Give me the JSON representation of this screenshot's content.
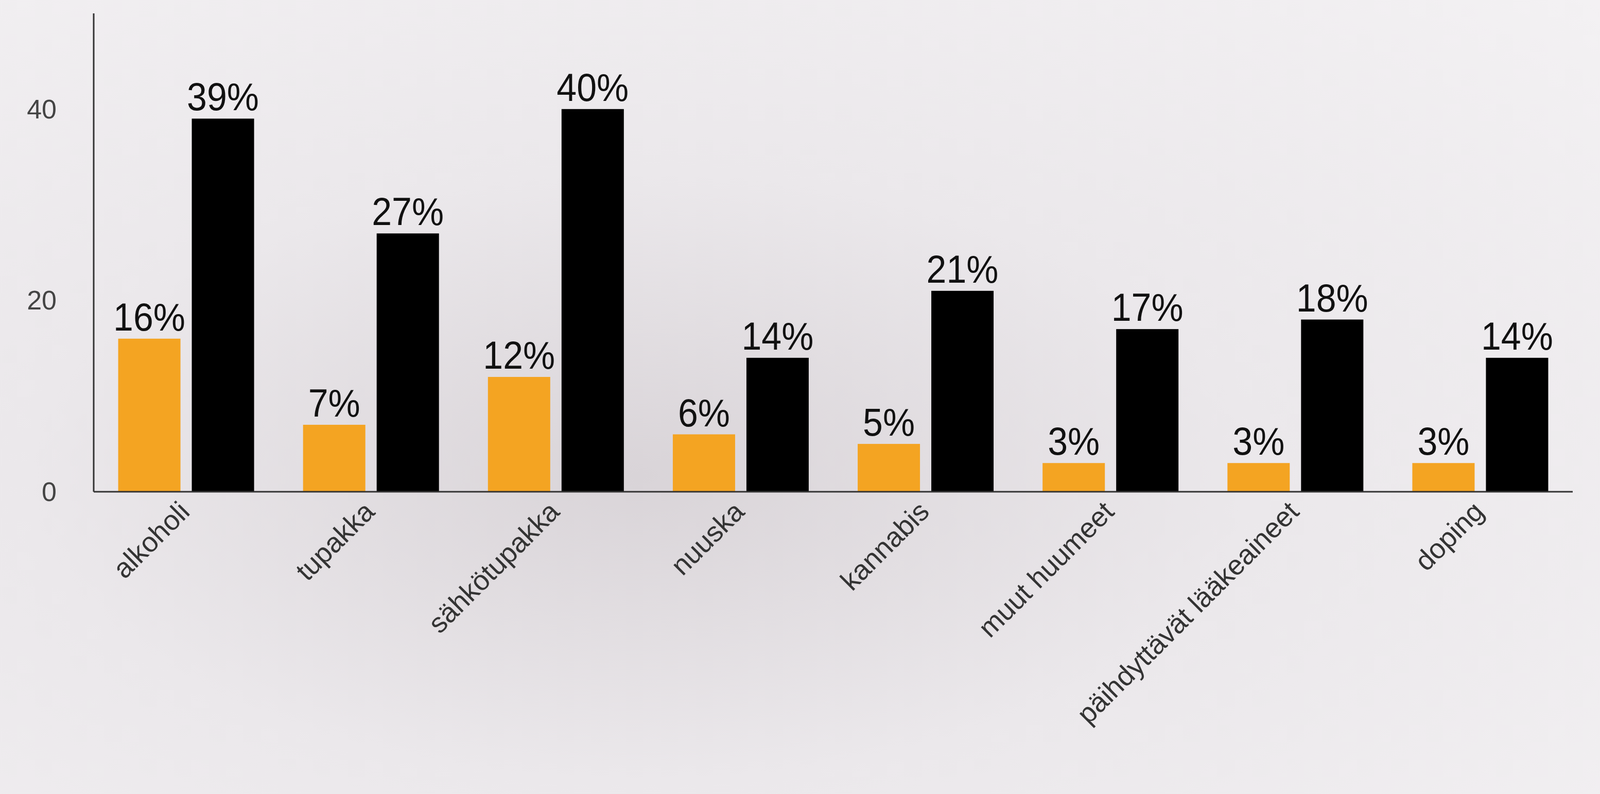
{
  "chart_data": {
    "type": "bar",
    "categories": [
      "alkoholi",
      "tupakka",
      "sähkötupakka",
      "nuuska",
      "kannabis",
      "muut huumeet",
      "päihdyttävät lääkeaineet",
      "doping"
    ],
    "series": [
      {
        "color": "#f4a422",
        "values": [
          16,
          7,
          12,
          6,
          5,
          3,
          3,
          3
        ],
        "value_labels": [
          "16%",
          "7%",
          "12%",
          "6%",
          "5%",
          "3%",
          "3%",
          "3%"
        ]
      },
      {
        "color": "#000000",
        "values": [
          39,
          27,
          40,
          14,
          21,
          17,
          18,
          14
        ],
        "value_labels": [
          "39%",
          "27%",
          "40%",
          "14%",
          "21%",
          "17%",
          "18%",
          "14%"
        ]
      }
    ],
    "ylim": [
      0,
      50
    ],
    "yticks": [
      0,
      20,
      40
    ],
    "grid": false,
    "data_labels": true
  }
}
